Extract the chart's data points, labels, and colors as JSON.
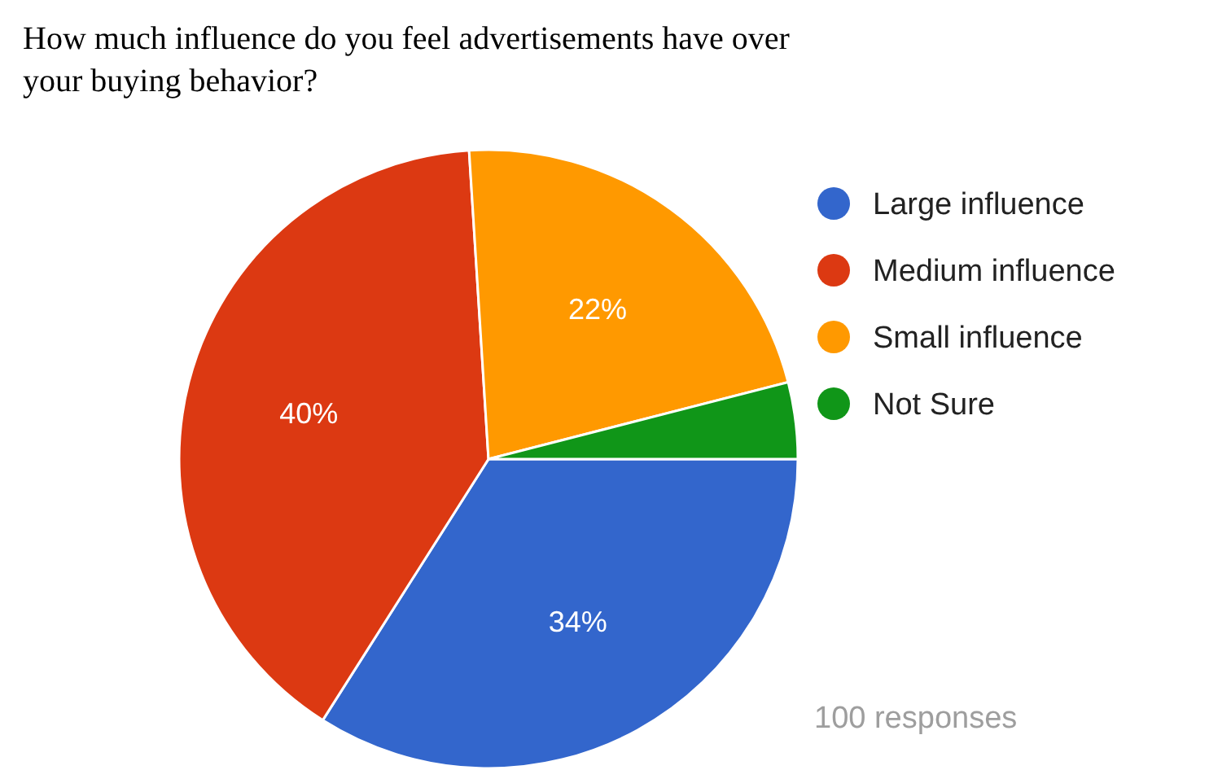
{
  "chart_data": {
    "type": "pie",
    "title": "How much influence do you feel advertisements have over your buying behavior?",
    "categories": [
      "Large influence",
      "Medium influence",
      "Small influence",
      "Not Sure"
    ],
    "values": [
      34,
      40,
      22,
      4
    ],
    "colors": [
      "#3366cc",
      "#dc3912",
      "#ff9900",
      "#109618"
    ],
    "value_labels": [
      "34%",
      "40%",
      "22%",
      null
    ],
    "legend": "right",
    "annotations": [
      "100 responses"
    ]
  }
}
